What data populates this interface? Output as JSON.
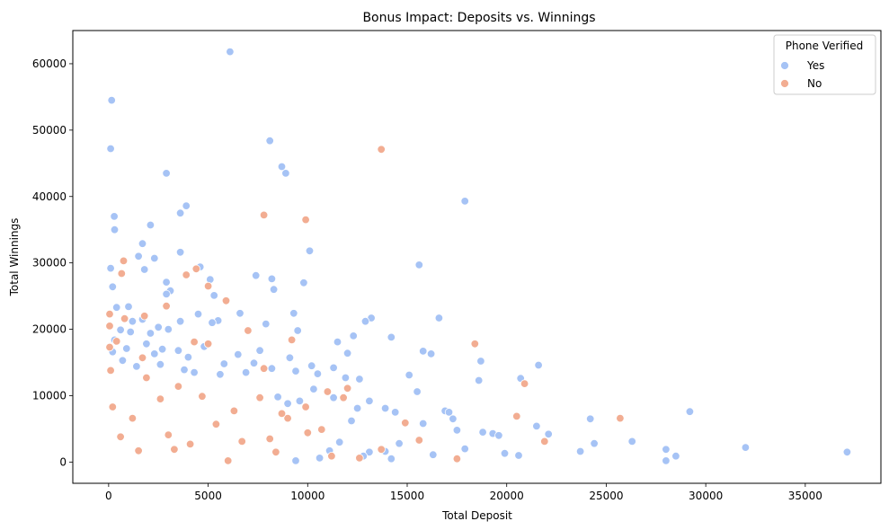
{
  "chart_data": {
    "type": "scatter",
    "title": "Bonus Impact: Deposits vs. Winnings",
    "xlabel": "Total Deposit",
    "ylabel": "Total Winnings",
    "xlim": [
      -1800,
      38800
    ],
    "ylim": [
      -3200,
      65000
    ],
    "xticks": [
      0,
      5000,
      10000,
      15000,
      20000,
      25000,
      30000,
      35000
    ],
    "yticks": [
      0,
      10000,
      20000,
      30000,
      40000,
      50000,
      60000
    ],
    "grid": false,
    "legend": {
      "title": "Phone Verified",
      "position": "top-right",
      "entries": [
        {
          "label": "Yes",
          "color": "#a6c3f5"
        },
        {
          "label": "No",
          "color": "#f2ad92"
        }
      ]
    },
    "series": [
      {
        "name": "Yes",
        "color": "#a6c3f5",
        "points": [
          [
            6100,
            61800
          ],
          [
            150,
            54500
          ],
          [
            100,
            47200
          ],
          [
            8100,
            48400
          ],
          [
            8700,
            44500
          ],
          [
            8900,
            43500
          ],
          [
            2900,
            43500
          ],
          [
            3900,
            38600
          ],
          [
            3600,
            37500
          ],
          [
            17900,
            39300
          ],
          [
            280,
            37000
          ],
          [
            300,
            35000
          ],
          [
            2100,
            35700
          ],
          [
            1700,
            32900
          ],
          [
            10100,
            31800
          ],
          [
            3600,
            31600
          ],
          [
            2300,
            30700
          ],
          [
            1500,
            31000
          ],
          [
            1800,
            29000
          ],
          [
            100,
            29200
          ],
          [
            15600,
            29700
          ],
          [
            7400,
            28100
          ],
          [
            8200,
            27600
          ],
          [
            4600,
            29400
          ],
          [
            5100,
            27500
          ],
          [
            2900,
            27100
          ],
          [
            9800,
            27000
          ],
          [
            200,
            26400
          ],
          [
            8300,
            26000
          ],
          [
            3100,
            25800
          ],
          [
            5300,
            25100
          ],
          [
            2900,
            25300
          ],
          [
            400,
            23300
          ],
          [
            1000,
            23400
          ],
          [
            6600,
            22400
          ],
          [
            4500,
            22300
          ],
          [
            9300,
            22400
          ],
          [
            13200,
            21700
          ],
          [
            16600,
            21700
          ],
          [
            12900,
            21200
          ],
          [
            5500,
            21300
          ],
          [
            5200,
            21000
          ],
          [
            1700,
            21500
          ],
          [
            1200,
            21200
          ],
          [
            3600,
            21200
          ],
          [
            9500,
            19800
          ],
          [
            12300,
            19000
          ],
          [
            14200,
            18800
          ],
          [
            7900,
            20800
          ],
          [
            2500,
            20300
          ],
          [
            3000,
            20000
          ],
          [
            600,
            19900
          ],
          [
            1100,
            19600
          ],
          [
            2100,
            19400
          ],
          [
            15800,
            16700
          ],
          [
            16200,
            16300
          ],
          [
            18700,
            15200
          ],
          [
            21600,
            14600
          ],
          [
            20700,
            12600
          ],
          [
            18600,
            12300
          ],
          [
            15100,
            13100
          ],
          [
            10200,
            14500
          ],
          [
            11500,
            18100
          ],
          [
            12000,
            16400
          ],
          [
            15500,
            10600
          ],
          [
            16900,
            7700
          ],
          [
            17100,
            7500
          ],
          [
            17300,
            6500
          ],
          [
            17500,
            4800
          ],
          [
            17900,
            2000
          ],
          [
            18800,
            4500
          ],
          [
            19300,
            4300
          ],
          [
            19600,
            4000
          ],
          [
            21500,
            5400
          ],
          [
            22100,
            4200
          ],
          [
            24200,
            6500
          ],
          [
            23700,
            1600
          ],
          [
            24400,
            2800
          ],
          [
            26300,
            3100
          ],
          [
            28000,
            1900
          ],
          [
            28500,
            900
          ],
          [
            29200,
            7600
          ],
          [
            32000,
            2200
          ],
          [
            37100,
            1500
          ],
          [
            21900,
            3100
          ],
          [
            20600,
            1000
          ],
          [
            19900,
            1300
          ],
          [
            15800,
            5800
          ],
          [
            14600,
            2800
          ],
          [
            13900,
            1600
          ],
          [
            13100,
            1500
          ],
          [
            12800,
            900
          ],
          [
            11600,
            3000
          ],
          [
            11100,
            1700
          ],
          [
            10600,
            600
          ],
          [
            9400,
            200
          ],
          [
            28000,
            200
          ],
          [
            16300,
            1100
          ],
          [
            17500,
            400
          ],
          [
            14200,
            500
          ],
          [
            10300,
            11000
          ],
          [
            9600,
            9200
          ],
          [
            9000,
            8800
          ],
          [
            8500,
            9800
          ],
          [
            11300,
            9700
          ],
          [
            11900,
            12700
          ],
          [
            12500,
            8100
          ],
          [
            13100,
            9200
          ],
          [
            13900,
            8100
          ],
          [
            14400,
            7500
          ],
          [
            12200,
            6200
          ],
          [
            9100,
            15700
          ],
          [
            7600,
            16800
          ],
          [
            6500,
            16200
          ],
          [
            5800,
            14800
          ],
          [
            4800,
            17400
          ],
          [
            4000,
            15800
          ],
          [
            3500,
            16800
          ],
          [
            2700,
            17000
          ],
          [
            2300,
            16300
          ],
          [
            1900,
            17800
          ],
          [
            900,
            17100
          ],
          [
            300,
            18400
          ],
          [
            200,
            16600
          ],
          [
            700,
            15300
          ],
          [
            1400,
            14400
          ],
          [
            2600,
            14700
          ],
          [
            3800,
            13900
          ],
          [
            4300,
            13500
          ],
          [
            5600,
            13200
          ],
          [
            6900,
            13500
          ],
          [
            7300,
            14900
          ],
          [
            8200,
            14100
          ],
          [
            9400,
            13700
          ],
          [
            10500,
            13300
          ],
          [
            11300,
            14200
          ],
          [
            12600,
            12500
          ]
        ]
      },
      {
        "name": "No",
        "color": "#f2ad92",
        "points": [
          [
            13700,
            47100
          ],
          [
            7800,
            37200
          ],
          [
            9900,
            36500
          ],
          [
            750,
            30300
          ],
          [
            650,
            28400
          ],
          [
            3900,
            28200
          ],
          [
            4400,
            29100
          ],
          [
            5000,
            26500
          ],
          [
            5900,
            24300
          ],
          [
            2900,
            23500
          ],
          [
            50,
            22300
          ],
          [
            50,
            20500
          ],
          [
            50,
            17300
          ],
          [
            400,
            18200
          ],
          [
            800,
            21600
          ],
          [
            1800,
            22000
          ],
          [
            4300,
            18100
          ],
          [
            5000,
            17800
          ],
          [
            7000,
            19800
          ],
          [
            7800,
            14100
          ],
          [
            9200,
            18400
          ],
          [
            11000,
            10600
          ],
          [
            11800,
            9700
          ],
          [
            12000,
            11100
          ],
          [
            18400,
            17800
          ],
          [
            20900,
            11800
          ],
          [
            20500,
            6900
          ],
          [
            25700,
            6600
          ],
          [
            21900,
            3100
          ],
          [
            17500,
            500
          ],
          [
            15600,
            3300
          ],
          [
            14900,
            5900
          ],
          [
            13700,
            1900
          ],
          [
            12600,
            600
          ],
          [
            11200,
            900
          ],
          [
            10000,
            4400
          ],
          [
            9000,
            6600
          ],
          [
            8100,
            3500
          ],
          [
            6700,
            3100
          ],
          [
            5400,
            5700
          ],
          [
            4100,
            2700
          ],
          [
            3300,
            1900
          ],
          [
            2600,
            9500
          ],
          [
            1900,
            12700
          ],
          [
            1200,
            6600
          ],
          [
            600,
            3800
          ],
          [
            200,
            8300
          ],
          [
            100,
            13800
          ],
          [
            1700,
            15700
          ],
          [
            3500,
            11400
          ],
          [
            4700,
            9900
          ],
          [
            6300,
            7700
          ],
          [
            7600,
            9700
          ],
          [
            8700,
            7300
          ],
          [
            9900,
            8300
          ],
          [
            10700,
            4900
          ],
          [
            8400,
            1500
          ],
          [
            6000,
            200
          ],
          [
            3000,
            4100
          ],
          [
            1500,
            1700
          ]
        ]
      }
    ]
  }
}
